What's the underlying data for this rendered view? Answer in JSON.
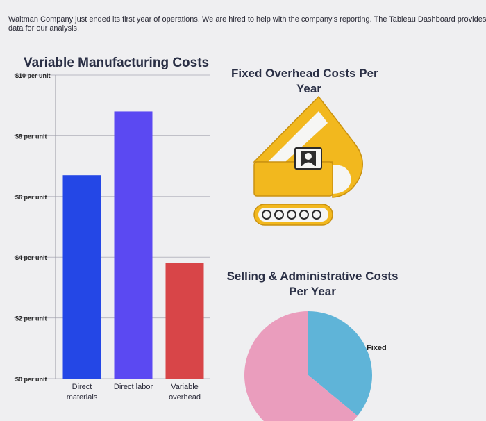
{
  "intro_text": "Waltman Company just ended its first year of operations. We are hired to help with the company's reporting. The Tableau Dashboard provides data for our analysis.",
  "variable_panel": {
    "title": "Variable Manufacturing Costs"
  },
  "fixed_panel": {
    "title_line1": "Fixed Overhead Costs Per",
    "title_line2": "Year",
    "icon": "excavator-icon",
    "icon_color": "#f2b81e"
  },
  "sga_panel": {
    "title_line1": "Selling & Administrative Costs",
    "title_line2": "Per Year"
  },
  "chart_data": [
    {
      "type": "bar",
      "title": "Variable Manufacturing Costs",
      "categories": [
        [
          "Direct",
          "materials"
        ],
        [
          "Direct labor"
        ],
        [
          "Variable",
          "overhead"
        ]
      ],
      "values": [
        6.7,
        8.8,
        3.8
      ],
      "colors": [
        "#2447e6",
        "#5b49f2",
        "#d84548"
      ],
      "y_ticks": [
        {
          "value": 10,
          "label": "$10 per unit"
        },
        {
          "value": 8,
          "label": "$8 per unit"
        },
        {
          "value": 6,
          "label": "$6 per unit"
        },
        {
          "value": 4,
          "label": "$4 per unit"
        },
        {
          "value": 2,
          "label": "$2 per unit"
        },
        {
          "value": 0,
          "label": "$0 per unit"
        }
      ],
      "ylim": [
        0,
        10
      ],
      "grid": true
    },
    {
      "type": "pie",
      "slices": [
        {
          "label": "Fixed",
          "share": 0.36,
          "color": "#5fb4d8"
        },
        {
          "label": "",
          "share": 0.64,
          "color": "#ea9dbd"
        }
      ]
    }
  ]
}
